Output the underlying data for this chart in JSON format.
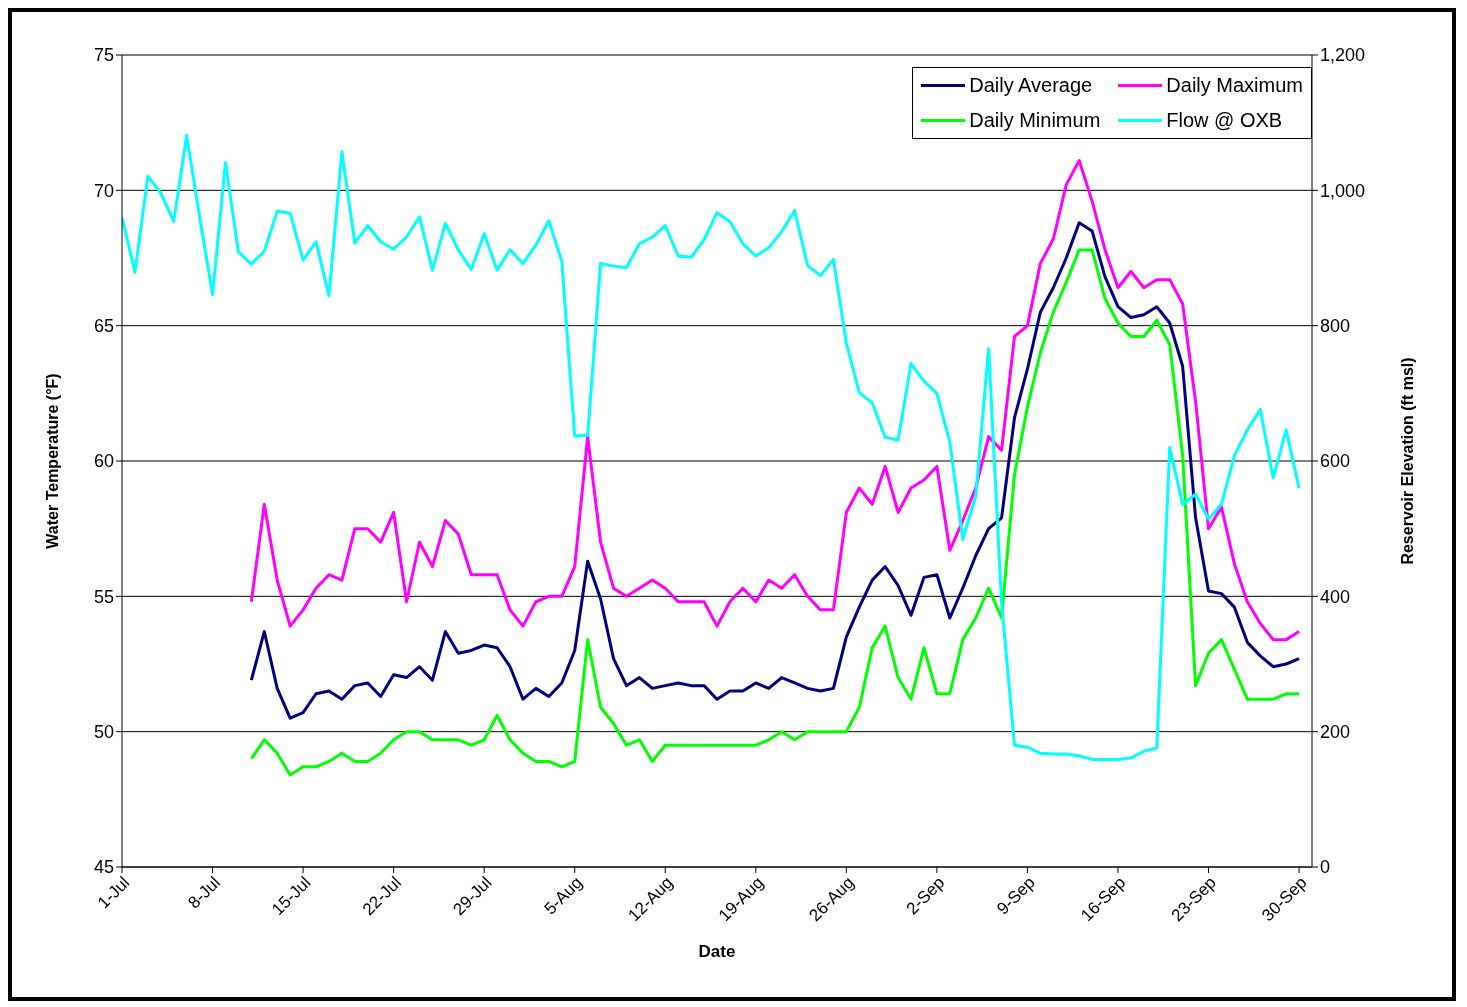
{
  "chart_data": {
    "type": "line",
    "xlabel": "Date",
    "ylabel": "Water Temperature (°F)",
    "y2label": "Reservoir Elevation (ft msl)",
    "x": [
      "--07-01",
      "--07-02",
      "--07-03",
      "--07-04",
      "--07-05",
      "--07-06",
      "--07-07",
      "--07-08",
      "--07-09",
      "--07-10",
      "--07-11",
      "--07-12",
      "--07-13",
      "--07-14",
      "--07-15",
      "--07-16",
      "--07-17",
      "--07-18",
      "--07-19",
      "--07-20",
      "--07-21",
      "--07-22",
      "--07-23",
      "--07-24",
      "--07-25",
      "--07-26",
      "--07-27",
      "--07-28",
      "--07-29",
      "--07-30",
      "--07-31",
      "--08-01",
      "--08-02",
      "--08-03",
      "--08-04",
      "--08-05",
      "--08-06",
      "--08-07",
      "--08-08",
      "--08-09",
      "--08-10",
      "--08-11",
      "--08-12",
      "--08-13",
      "--08-14",
      "--08-15",
      "--08-16",
      "--08-17",
      "--08-18",
      "--08-19",
      "--08-20",
      "--08-21",
      "--08-22",
      "--08-23",
      "--08-24",
      "--08-25",
      "--08-26",
      "--08-27",
      "--08-28",
      "--08-29",
      "--08-30",
      "--08-31",
      "--09-01",
      "--09-02",
      "--09-03",
      "--09-04",
      "--09-05",
      "--09-06",
      "--09-07",
      "--09-08",
      "--09-09",
      "--09-10",
      "--09-11",
      "--09-12",
      "--09-13",
      "--09-14",
      "--09-15",
      "--09-16",
      "--09-17",
      "--09-18",
      "--09-19",
      "--09-20",
      "--09-21",
      "--09-22",
      "--09-23",
      "--09-24",
      "--09-25",
      "--09-26",
      "--09-27",
      "--09-28",
      "--09-29",
      "--09-30"
    ],
    "series": [
      {
        "name": "Daily Average",
        "color": "#000080",
        "values": [
          null,
          null,
          null,
          null,
          null,
          null,
          null,
          null,
          null,
          null,
          51.9,
          53.7,
          51.6,
          50.5,
          50.7,
          51.4,
          51.5,
          51.2,
          51.7,
          51.8,
          51.3,
          52.1,
          52.0,
          52.4,
          51.9,
          53.7,
          52.9,
          53.0,
          53.2,
          53.1,
          52.4,
          51.2,
          51.6,
          51.3,
          51.8,
          53.0,
          56.3,
          54.9,
          52.7,
          51.7,
          52.0,
          51.6,
          51.7,
          51.8,
          51.7,
          51.7,
          51.2,
          51.5,
          51.5,
          51.8,
          51.6,
          52.0,
          51.8,
          51.6,
          51.5,
          51.6,
          53.5,
          54.6,
          55.6,
          56.1,
          55.4,
          54.3,
          55.7,
          55.8,
          54.2,
          55.3,
          56.5,
          57.5,
          57.9,
          61.6,
          63.4,
          65.5,
          66.4,
          67.5,
          68.8,
          68.5,
          66.8,
          65.7,
          65.3,
          65.4,
          65.7,
          65.1,
          63.5,
          57.9,
          55.2,
          55.1,
          54.6,
          53.3,
          52.8,
          52.4,
          52.5,
          52.7
        ]
      },
      {
        "name": "Daily Maximum",
        "color": "#ff00ff",
        "values": [
          null,
          null,
          null,
          null,
          null,
          null,
          null,
          null,
          null,
          null,
          54.8,
          58.4,
          55.6,
          53.9,
          54.5,
          55.3,
          55.8,
          55.6,
          57.5,
          57.5,
          57.0,
          58.1,
          54.8,
          57.0,
          56.1,
          57.8,
          57.3,
          55.8,
          55.8,
          55.8,
          54.5,
          53.9,
          54.8,
          55.0,
          55.0,
          56.1,
          60.9,
          57.0,
          55.3,
          55.0,
          55.3,
          55.6,
          55.3,
          54.8,
          54.8,
          54.8,
          53.9,
          54.8,
          55.3,
          54.8,
          55.6,
          55.3,
          55.8,
          55.0,
          54.5,
          54.5,
          58.1,
          59.0,
          58.4,
          59.8,
          58.1,
          59.0,
          59.3,
          59.8,
          56.7,
          57.8,
          59.0,
          60.9,
          60.4,
          64.6,
          65.0,
          67.3,
          68.2,
          70.2,
          71.1,
          69.6,
          67.8,
          66.4,
          67.0,
          66.4,
          66.7,
          66.7,
          65.8,
          62.2,
          57.5,
          58.3,
          56.2,
          54.8,
          54.0,
          53.4,
          53.4,
          53.7
        ]
      },
      {
        "name": "Daily Minimum",
        "color": "#00ff00",
        "values": [
          null,
          null,
          null,
          null,
          null,
          null,
          null,
          null,
          null,
          null,
          49.0,
          49.7,
          49.2,
          48.4,
          48.7,
          48.7,
          48.9,
          49.2,
          48.9,
          48.9,
          49.2,
          49.7,
          50.0,
          50.0,
          49.7,
          49.7,
          49.7,
          49.5,
          49.7,
          50.6,
          49.7,
          49.2,
          48.9,
          48.9,
          48.7,
          48.9,
          53.4,
          50.9,
          50.3,
          49.5,
          49.7,
          48.9,
          49.5,
          49.5,
          49.5,
          49.5,
          49.5,
          49.5,
          49.5,
          49.5,
          49.7,
          50.0,
          49.7,
          50.0,
          50.0,
          50.0,
          50.0,
          50.9,
          53.1,
          53.9,
          52.0,
          51.2,
          53.1,
          51.4,
          51.4,
          53.4,
          54.2,
          55.3,
          54.2,
          59.5,
          62.0,
          64.0,
          65.5,
          66.6,
          67.8,
          67.8,
          66.0,
          65.1,
          64.6,
          64.6,
          65.2,
          64.3,
          60.2,
          51.7,
          52.9,
          53.4,
          52.3,
          51.2,
          51.2,
          51.2,
          51.4,
          51.4
        ]
      },
      {
        "name": "Flow @ OXB",
        "color": "#00ffff",
        "axis": "y2",
        "values": [
          960,
          879,
          1021,
          996,
          954,
          1081,
          961,
          846,
          1041,
          909,
          891,
          910,
          969,
          966,
          897,
          924,
          844,
          1057,
          922,
          948,
          924,
          913,
          931,
          961,
          882,
          951,
          912,
          883,
          936,
          882,
          912,
          892,
          919,
          955,
          895,
          637,
          638,
          892,
          888,
          886,
          921,
          931,
          948,
          903,
          901,
          927,
          967,
          954,
          921,
          903,
          915,
          939,
          970,
          889,
          874,
          898,
          774,
          701,
          686,
          635,
          631,
          744,
          718,
          700,
          628,
          484,
          548,
          766,
          390,
          180,
          177,
          168,
          167,
          167,
          164,
          159,
          159,
          159,
          161,
          171,
          176,
          620,
          536,
          551,
          514,
          536,
          608,
          646,
          676,
          575,
          646,
          560
        ]
      }
    ],
    "xlim": [
      "--07-01",
      "--10-01"
    ],
    "xticks": [
      {
        "value": "--07-01",
        "label": "1-Jul"
      },
      {
        "value": "--07-08",
        "label": "8-Jul"
      },
      {
        "value": "--07-15",
        "label": "15-Jul"
      },
      {
        "value": "--07-22",
        "label": "22-Jul"
      },
      {
        "value": "--07-29",
        "label": "29-Jul"
      },
      {
        "value": "--08-05",
        "label": "5-Aug"
      },
      {
        "value": "--08-12",
        "label": "12-Aug"
      },
      {
        "value": "--08-19",
        "label": "19-Aug"
      },
      {
        "value": "--08-26",
        "label": "26-Aug"
      },
      {
        "value": "--09-02",
        "label": "2-Sep"
      },
      {
        "value": "--09-09",
        "label": "9-Sep"
      },
      {
        "value": "--09-16",
        "label": "16-Sep"
      },
      {
        "value": "--09-23",
        "label": "23-Sep"
      },
      {
        "value": "--09-30",
        "label": "30-Sep"
      }
    ],
    "ylim": [
      45,
      75
    ],
    "yticks": [
      45,
      50,
      55,
      60,
      65,
      70,
      75
    ],
    "y2lim": [
      0,
      1200
    ],
    "y2ticks": [
      0,
      200,
      400,
      600,
      800,
      {
        "value": 1000,
        "label": "1,000"
      },
      {
        "value": 1200,
        "label": "1,200"
      }
    ],
    "grid": "y",
    "legend": "top right",
    "marker": "none",
    "line_style": "solid"
  }
}
